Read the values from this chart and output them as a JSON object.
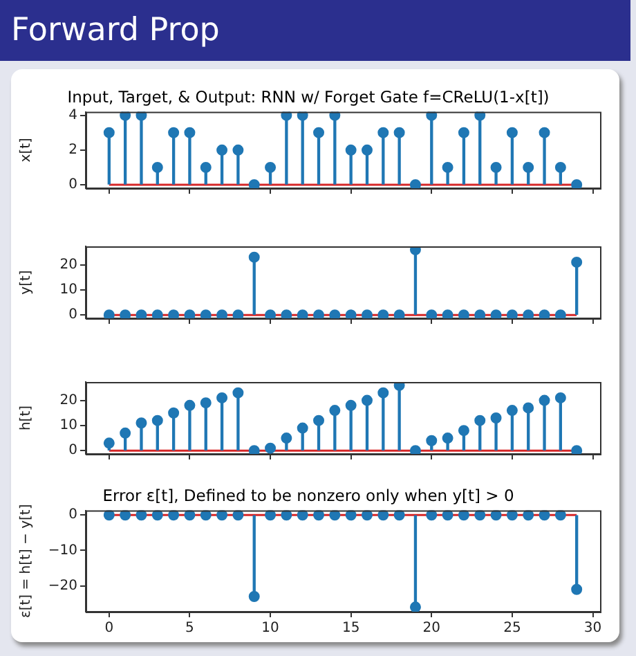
{
  "chart_data": [
    {
      "type": "lollipop",
      "title": "Input, Target, & Output: RNN w/ Forget Gate f=CReLU(1-x[t])",
      "ylabel": "x[t]",
      "annotations": [
        "Forward Prop"
      ],
      "tick_labels": "y",
      "x": [
        0,
        1,
        2,
        3,
        4,
        5,
        6,
        7,
        8,
        9,
        10,
        11,
        12,
        13,
        14,
        15,
        16,
        17,
        18,
        19,
        20,
        21,
        22,
        23,
        24,
        25,
        26,
        27,
        28,
        29
      ],
      "series": [
        {
          "color": "#1f77b4",
          "values": [
            3,
            4,
            4,
            1,
            3,
            3,
            1,
            2,
            2,
            0,
            1,
            4,
            4,
            3,
            4,
            2,
            2,
            3,
            3,
            0,
            4,
            1,
            3,
            4,
            1,
            3,
            1,
            3,
            1,
            0
          ]
        }
      ],
      "xlim": [
        -1.45,
        30.45
      ],
      "xticks": [
        0,
        5,
        10,
        15,
        20,
        25,
        30
      ],
      "ylim": [
        -0.2,
        4.2
      ],
      "yticks": [
        0,
        2,
        4
      ],
      "ref_lines": [
        {
          "axis": "y",
          "value": 0,
          "color": "#d62728"
        }
      ],
      "grid": false,
      "marker": "circle"
    },
    {
      "type": "lollipop",
      "ylabel": "y[t]",
      "tick_labels": "y",
      "x": [
        0,
        1,
        2,
        3,
        4,
        5,
        6,
        7,
        8,
        9,
        10,
        11,
        12,
        13,
        14,
        15,
        16,
        17,
        18,
        19,
        20,
        21,
        22,
        23,
        24,
        25,
        26,
        27,
        28,
        29
      ],
      "series": [
        {
          "color": "#1f77b4",
          "values": [
            0,
            0,
            0,
            0,
            0,
            0,
            0,
            0,
            0,
            23,
            0,
            0,
            0,
            0,
            0,
            0,
            0,
            0,
            0,
            26,
            0,
            0,
            0,
            0,
            0,
            0,
            0,
            0,
            0,
            21
          ]
        }
      ],
      "xlim": [
        -1.45,
        30.45
      ],
      "xticks": [
        0,
        5,
        10,
        15,
        20,
        25,
        30
      ],
      "ylim": [
        -1.3,
        27.3
      ],
      "yticks": [
        0,
        10,
        20
      ],
      "ref_lines": [
        {
          "axis": "y",
          "value": 0,
          "color": "#d62728"
        }
      ],
      "grid": false,
      "marker": "circle"
    },
    {
      "type": "lollipop",
      "ylabel": "h[t]",
      "tick_labels": "y",
      "x": [
        0,
        1,
        2,
        3,
        4,
        5,
        6,
        7,
        8,
        9,
        10,
        11,
        12,
        13,
        14,
        15,
        16,
        17,
        18,
        19,
        20,
        21,
        22,
        23,
        24,
        25,
        26,
        27,
        28,
        29
      ],
      "series": [
        {
          "color": "#1f77b4",
          "values": [
            3,
            7,
            11,
            12,
            15,
            18,
            19,
            21,
            23,
            0,
            1,
            5,
            9,
            12,
            16,
            18,
            20,
            23,
            26,
            0,
            4,
            5,
            8,
            12,
            13,
            16,
            17,
            20,
            21,
            0
          ]
        }
      ],
      "xlim": [
        -1.45,
        30.45
      ],
      "xticks": [
        0,
        5,
        10,
        15,
        20,
        25,
        30
      ],
      "ylim": [
        -1.3,
        27.3
      ],
      "yticks": [
        0,
        10,
        20
      ],
      "ref_lines": [
        {
          "axis": "y",
          "value": 0,
          "color": "#d62728"
        }
      ],
      "grid": false,
      "marker": "circle"
    },
    {
      "type": "lollipop",
      "title": "Error ε[t], Defined to be nonzero only when y[t] > 0",
      "ylabel": "ε[t] = h[t] − y[t]",
      "x": [
        0,
        1,
        2,
        3,
        4,
        5,
        6,
        7,
        8,
        9,
        10,
        11,
        12,
        13,
        14,
        15,
        16,
        17,
        18,
        19,
        20,
        21,
        22,
        23,
        24,
        25,
        26,
        27,
        28,
        29
      ],
      "series": [
        {
          "color": "#1f77b4",
          "values": [
            0,
            0,
            0,
            0,
            0,
            0,
            0,
            0,
            0,
            -23,
            0,
            0,
            0,
            0,
            0,
            0,
            0,
            0,
            0,
            -26,
            0,
            0,
            0,
            0,
            0,
            0,
            0,
            0,
            0,
            -21
          ]
        }
      ],
      "xlim": [
        -1.45,
        30.45
      ],
      "xticks": [
        0,
        5,
        10,
        15,
        20,
        25,
        30
      ],
      "ylim": [
        -27.3,
        1.3
      ],
      "yticks": [
        -20,
        -10,
        0
      ],
      "ref_lines": [
        {
          "axis": "y",
          "value": 0,
          "color": "#d62728"
        }
      ],
      "grid": false,
      "marker": "circle"
    }
  ]
}
